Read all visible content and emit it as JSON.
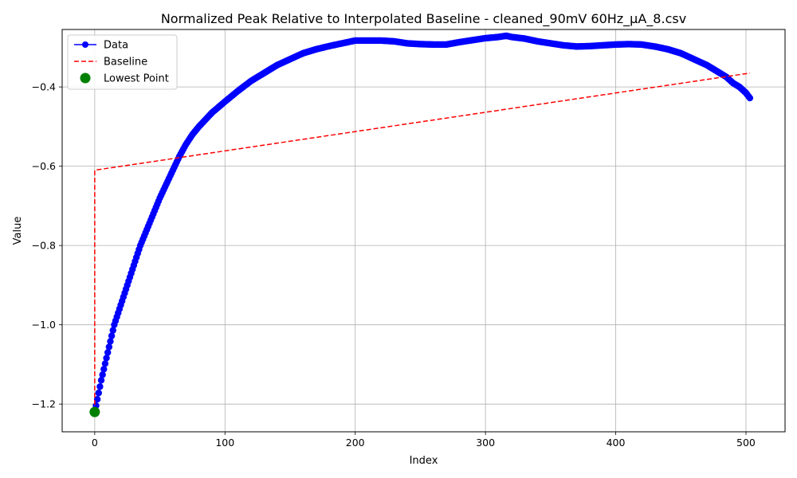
{
  "chart_data": {
    "type": "line",
    "title": "Normalized Peak Relative to Interpolated Baseline - cleaned_90mV 60Hz_μA_8.csv",
    "xlabel": "Index",
    "ylabel": "Value",
    "xlim": [
      -25,
      530
    ],
    "ylim": [
      -1.27,
      -0.255
    ],
    "x_ticks": [
      0,
      100,
      200,
      300,
      400,
      500
    ],
    "x_tick_labels": [
      "0",
      "100",
      "200",
      "300",
      "400",
      "500"
    ],
    "y_ticks": [
      -1.2,
      -1.0,
      -0.8,
      -0.6,
      -0.4
    ],
    "y_tick_labels": [
      "−1.2",
      "−1.0",
      "−0.8",
      "−0.6",
      "−0.4"
    ],
    "grid": true,
    "legend_position": "top-left",
    "legend": [
      "Data",
      "Baseline",
      "Lowest Point"
    ],
    "series": [
      {
        "name": "Data",
        "style": "line-marker",
        "color": "#0000ff",
        "x_range": [
          0,
          503
        ],
        "key_points": {
          "x": [
            0,
            5,
            10,
            15,
            20,
            25,
            30,
            35,
            40,
            45,
            50,
            55,
            60,
            65,
            70,
            75,
            80,
            90,
            100,
            110,
            120,
            130,
            140,
            150,
            160,
            170,
            180,
            190,
            200,
            210,
            220,
            230,
            240,
            250,
            260,
            270,
            280,
            290,
            300,
            310,
            316,
            320,
            330,
            340,
            350,
            360,
            370,
            380,
            390,
            400,
            410,
            420,
            430,
            440,
            450,
            460,
            470,
            480,
            485,
            490,
            495,
            500,
            503
          ],
          "y": [
            -1.22,
            -1.14,
            -1.07,
            -1.0,
            -0.95,
            -0.9,
            -0.85,
            -0.8,
            -0.76,
            -0.72,
            -0.68,
            -0.645,
            -0.61,
            -0.575,
            -0.545,
            -0.52,
            -0.5,
            -0.465,
            -0.437,
            -0.41,
            -0.385,
            -0.365,
            -0.345,
            -0.33,
            -0.315,
            -0.305,
            -0.297,
            -0.29,
            -0.283,
            -0.283,
            -0.283,
            -0.285,
            -0.29,
            -0.292,
            -0.293,
            -0.293,
            -0.287,
            -0.282,
            -0.277,
            -0.274,
            -0.271,
            -0.274,
            -0.278,
            -0.285,
            -0.29,
            -0.295,
            -0.298,
            -0.297,
            -0.295,
            -0.293,
            -0.292,
            -0.293,
            -0.298,
            -0.305,
            -0.315,
            -0.33,
            -0.345,
            -0.365,
            -0.375,
            -0.39,
            -0.4,
            -0.415,
            -0.428
          ]
        }
      },
      {
        "name": "Baseline",
        "style": "dashed",
        "color": "#ff0000",
        "x": [
          0,
          0,
          503
        ],
        "y": [
          -1.22,
          -0.61,
          -0.365
        ]
      },
      {
        "name": "Lowest Point",
        "style": "scatter",
        "color": "#008000",
        "x": [
          0
        ],
        "y": [
          -1.22
        ]
      }
    ]
  }
}
